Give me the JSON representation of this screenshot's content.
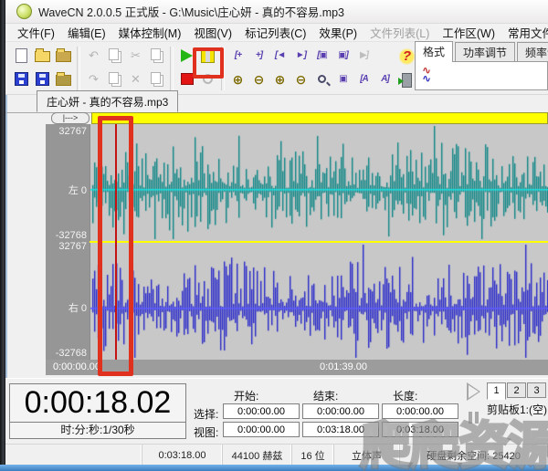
{
  "window": {
    "title": "WaveCN 2.0.0.5 正式版 - G:\\Music\\庄心妍 - 真的不容易.mp3"
  },
  "menu": {
    "items": [
      {
        "label": "文件(F)",
        "enabled": true
      },
      {
        "label": "编辑(E)",
        "enabled": true
      },
      {
        "label": "媒体控制(M)",
        "enabled": true
      },
      {
        "label": "视图(V)",
        "enabled": true
      },
      {
        "label": "标记列表(C)",
        "enabled": true
      },
      {
        "label": "效果(P)",
        "enabled": true
      },
      {
        "label": "文件列表(L)",
        "enabled": false
      },
      {
        "label": "工作区(W)",
        "enabled": true
      },
      {
        "label": "常用文件(A)",
        "enabled": true
      }
    ]
  },
  "right_panel": {
    "tabs": [
      {
        "label": "格式",
        "active": true
      },
      {
        "label": "功率调节",
        "active": false
      },
      {
        "label": "频率调节",
        "active": false
      }
    ]
  },
  "document_tab": {
    "label": "庄心妍 - 真的不容易.mp3"
  },
  "waveform": {
    "overview_button_label": "|--->",
    "left_scale": {
      "max": "32767",
      "zero": "左 0",
      "min": "-32768"
    },
    "right_scale": {
      "max": "32767",
      "zero": "右 0",
      "min": "-32768"
    },
    "ruler": {
      "start": "0:00:00.00",
      "middle": "0:01:39.00"
    },
    "colors": {
      "left_bar": "#0e8585",
      "left_zero": "#19dede",
      "right_bar": "#2828c8",
      "right_zero": "#5b5bff",
      "background": "#c8c8c8",
      "separator": "#ffff00",
      "cursor": "#c41111",
      "overview": "#ffff00",
      "annotation": "#e0311e"
    }
  },
  "time_panel": {
    "current": "0:00:18.02",
    "format": "时:分:秒:1/30秒",
    "headers": {
      "start": "开始:",
      "end": "结束:",
      "length": "长度:"
    },
    "rows": [
      {
        "label": "选择:",
        "start": "0:00:00.00",
        "end": "0:00:00.00",
        "length": "0:00:00.00"
      },
      {
        "label": "视图:",
        "start": "0:00:00.00",
        "end": "0:03:18.00",
        "length": "0:03:18.00"
      }
    ],
    "clipboard": {
      "tabs": [
        "1",
        "2",
        "3"
      ],
      "active": "1",
      "label": "剪贴板1:(空)"
    }
  },
  "status_bar": {
    "cells": [
      "",
      "0:03:18.00",
      "44100 赫兹",
      "16 位",
      "立体声",
      "硬盘剩余空间: 25420"
    ]
  },
  "watermark": {
    "text": "爬爬资源"
  }
}
